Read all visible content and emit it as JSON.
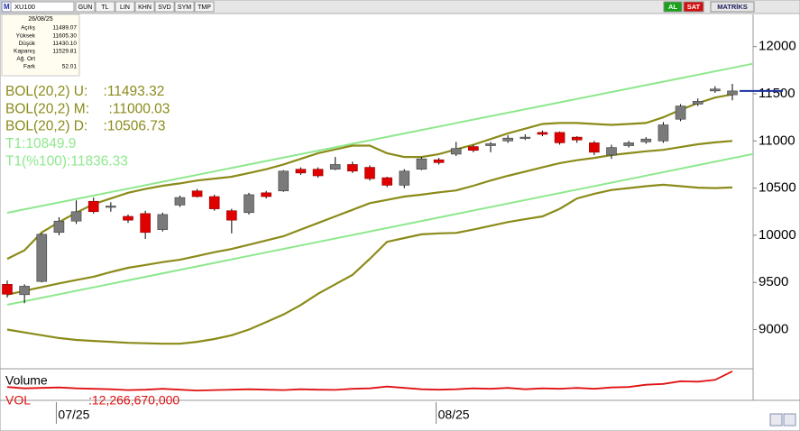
{
  "chart_data": {
    "type": "candlestick",
    "toolbar": {
      "symbol": "XU100",
      "buttons": [
        "GUN",
        "TL",
        "LIN",
        "KHN",
        "SVD",
        "SYM",
        "TMP"
      ],
      "right": [
        "AL",
        "SAT",
        "MATRİKS"
      ]
    },
    "info": {
      "date": "26/08/25",
      "rows": [
        {
          "label": "Açılış",
          "value": "11489.07"
        },
        {
          "label": "Yüksek",
          "value": "11605.30"
        },
        {
          "label": "Düşük",
          "value": "11430.10"
        },
        {
          "label": "Kapanış",
          "value": "11529.81"
        },
        {
          "label": "Ağ. Ort"
        },
        {
          "label": "Fark",
          "value": "52.01"
        }
      ]
    },
    "legend": [
      {
        "text": "BOL(20,2) U:    :11493.32",
        "color": "#8b8b1a"
      },
      {
        "text": "BOL(20,2) M:     :11000.03",
        "color": "#8b8b1a"
      },
      {
        "text": "BOL(20,2) D:    :10506.73",
        "color": "#8b8b1a"
      },
      {
        "text": "T1:10849.9",
        "color": "#8ee88e"
      },
      {
        "text": "T1(%100):11836.33",
        "color": "#8ee88e"
      }
    ],
    "categories": [
      null,
      null,
      null,
      "07/25",
      null,
      null,
      null,
      null,
      null,
      null,
      null,
      null,
      null,
      null,
      null,
      null,
      null,
      null,
      null,
      null,
      null,
      null,
      null,
      null,
      null,
      "08/25",
      null,
      null,
      null,
      null,
      null,
      null,
      null,
      null,
      null,
      null,
      null,
      null,
      null,
      null,
      null,
      null,
      null
    ],
    "open": [
      9480,
      9370,
      9510,
      10030,
      10150,
      10360,
      10300,
      10200,
      10230,
      10060,
      10320,
      10470,
      10410,
      10260,
      10240,
      10450,
      10470,
      10700,
      10700,
      10700,
      10750,
      10720,
      10610,
      10530,
      10700,
      10800,
      10860,
      10940,
      10950,
      11000,
      11030,
      11090,
      11090,
      11040,
      10980,
      10850,
      10950,
      10990,
      11000,
      11230,
      11390,
      11530,
      11489.07
    ],
    "high": [
      9520,
      9480,
      10020,
      10190,
      10370,
      10400,
      10350,
      10220,
      10260,
      10240,
      10420,
      10490,
      10430,
      10280,
      10450,
      10470,
      10690,
      10720,
      10720,
      10830,
      10780,
      10740,
      10620,
      10700,
      10830,
      10820,
      10990,
      10960,
      10990,
      11060,
      11070,
      11110,
      11100,
      11050,
      11000,
      10960,
      11000,
      11040,
      11200,
      11390,
      11450,
      11580,
      11605.3
    ],
    "low": [
      9340,
      9280,
      9500,
      10000,
      10120,
      10230,
      10250,
      10130,
      9960,
      10040,
      10300,
      10400,
      10260,
      10020,
      10220,
      10390,
      10460,
      10640,
      10610,
      10690,
      10660,
      10580,
      10510,
      10500,
      10690,
      10750,
      10840,
      10880,
      10880,
      10980,
      11010,
      11050,
      10960,
      10980,
      10850,
      10810,
      10930,
      10970,
      10980,
      11210,
      11370,
      11510,
      11430.1
    ],
    "close": [
      9375,
      9460,
      10010,
      10150,
      10250,
      10250,
      10310,
      10160,
      10030,
      10220,
      10400,
      10410,
      10280,
      10160,
      10430,
      10410,
      10680,
      10660,
      10630,
      10750,
      10680,
      10600,
      10530,
      10680,
      10810,
      10770,
      10920,
      10900,
      10970,
      11030,
      11040,
      11070,
      10980,
      11010,
      10880,
      10930,
      10980,
      11020,
      11170,
      11370,
      11420,
      11550,
      11529.81
    ],
    "up_color": "#7a7a7a",
    "down_color": "#e00000",
    "series": [
      {
        "name": "BOL(20,2) U",
        "color": "#8b8b1a",
        "values": [
          9750,
          9840,
          10030,
          10140,
          10240,
          10330,
          10390,
          10450,
          10490,
          10525,
          10550,
          10580,
          10600,
          10620,
          10660,
          10700,
          10750,
          10810,
          10870,
          10910,
          10950,
          10950,
          10870,
          10830,
          10830,
          10860,
          10910,
          10960,
          11020,
          11080,
          11130,
          11180,
          11190,
          11190,
          11180,
          11170,
          11180,
          11190,
          11250,
          11330,
          11400,
          11460,
          11493.32
        ]
      },
      {
        "name": "BOL(20,2) M",
        "color": "#8b8b1a",
        "values": [
          9370,
          9410,
          9450,
          9490,
          9525,
          9560,
          9610,
          9655,
          9685,
          9715,
          9740,
          9780,
          9820,
          9855,
          9900,
          9945,
          9990,
          10060,
          10130,
          10200,
          10270,
          10340,
          10375,
          10410,
          10430,
          10455,
          10475,
          10525,
          10580,
          10630,
          10675,
          10720,
          10765,
          10795,
          10820,
          10850,
          10870,
          10890,
          10905,
          10935,
          10965,
          10985,
          11000.03
        ]
      },
      {
        "name": "BOL(20,2) D",
        "color": "#8b8b1a",
        "values": [
          9000,
          8970,
          8940,
          8910,
          8890,
          8880,
          8870,
          8860,
          8855,
          8850,
          8850,
          8870,
          8900,
          8940,
          9000,
          9080,
          9160,
          9260,
          9380,
          9480,
          9580,
          9750,
          9930,
          9970,
          10010,
          10020,
          10025,
          10060,
          10100,
          10140,
          10170,
          10200,
          10280,
          10390,
          10440,
          10480,
          10500,
          10520,
          10535,
          10520,
          10505,
          10500,
          10506.73
        ]
      }
    ],
    "trendlines": [
      {
        "x": [
          0,
          46
        ],
        "values": [
          10238,
          11921
        ],
        "color": "#8ee88e"
      },
      {
        "x": [
          0,
          46
        ],
        "values": [
          9263,
          10965
        ],
        "color": "#8ee88e"
      }
    ],
    "last_price": {
      "value": 11529.81,
      "color": "#1a2fa0"
    },
    "ylim": [
      8594,
      12341
    ],
    "yticks": [
      9000,
      9500,
      10000,
      10500,
      11000,
      11500,
      12000
    ],
    "volume": {
      "title": "Volume",
      "name": "VOL",
      "value_label": ":12,266,670,000",
      "color": "#e01010",
      "ylim": [
        0,
        13000000000
      ],
      "values": [
        5200000000,
        4600000000,
        4800000000,
        5000000000,
        4600000000,
        4400000000,
        4200000000,
        3800000000,
        4000000000,
        4400000000,
        4000000000,
        3600000000,
        3800000000,
        4000000000,
        4200000000,
        4000000000,
        3800000000,
        4200000000,
        4000000000,
        3900000000,
        4400000000,
        4600000000,
        5400000000,
        4800000000,
        4200000000,
        4000000000,
        4200000000,
        4600000000,
        4400000000,
        4800000000,
        4200000000,
        4600000000,
        4400000000,
        4800000000,
        4400000000,
        5000000000,
        5200000000,
        6200000000,
        6600000000,
        7800000000,
        7600000000,
        8400000000,
        12266670000
      ]
    }
  }
}
